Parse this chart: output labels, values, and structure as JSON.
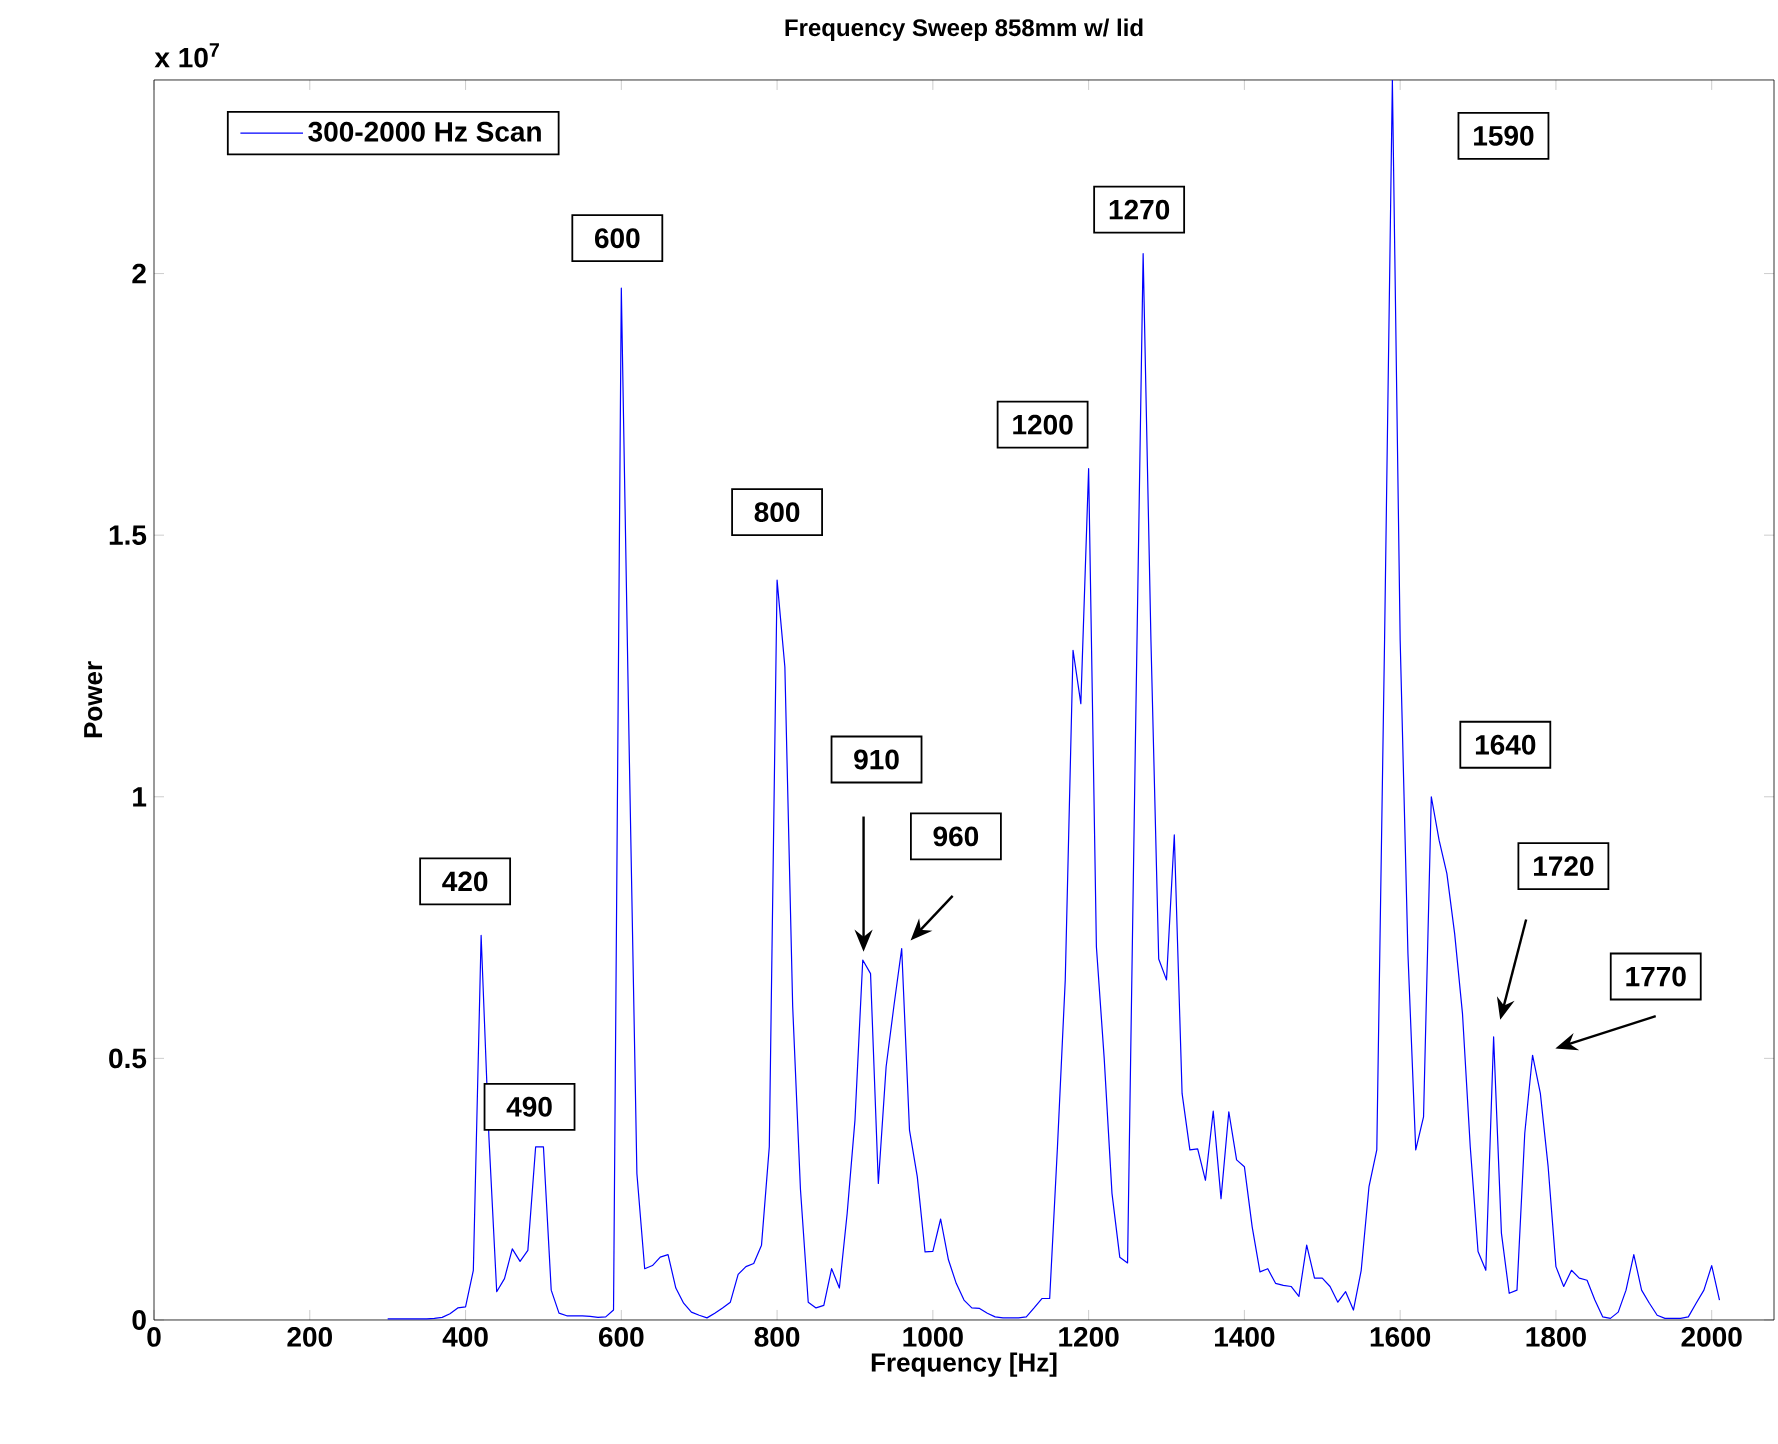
{
  "chart_data": {
    "type": "line",
    "title": "Frequency Sweep 858mm w/ lid",
    "xlabel": "Frequency [Hz]",
    "ylabel": "Power",
    "x": [
      300,
      310,
      320,
      330,
      340,
      350,
      360,
      370,
      380,
      390,
      400,
      410,
      420,
      430,
      440,
      450,
      460,
      470,
      480,
      490,
      500,
      510,
      520,
      530,
      540,
      550,
      560,
      570,
      580,
      590,
      600,
      610,
      620,
      630,
      640,
      650,
      660,
      670,
      680,
      690,
      700,
      710,
      720,
      730,
      740,
      750,
      760,
      770,
      780,
      790,
      800,
      810,
      820,
      830,
      840,
      850,
      860,
      870,
      880,
      890,
      900,
      910,
      920,
      930,
      940,
      950,
      960,
      970,
      980,
      990,
      1000,
      1010,
      1020,
      1030,
      1040,
      1050,
      1060,
      1070,
      1080,
      1090,
      1100,
      1110,
      1120,
      1130,
      1140,
      1150,
      1160,
      1170,
      1180,
      1190,
      1200,
      1210,
      1220,
      1230,
      1240,
      1250,
      1260,
      1270,
      1280,
      1290,
      1300,
      1310,
      1320,
      1330,
      1340,
      1350,
      1360,
      1370,
      1380,
      1390,
      1400,
      1410,
      1420,
      1430,
      1440,
      1450,
      1460,
      1470,
      1480,
      1490,
      1500,
      1510,
      1520,
      1530,
      1540,
      1550,
      1560,
      1570,
      1580,
      1590,
      1600,
      1610,
      1620,
      1630,
      1640,
      1650,
      1660,
      1670,
      1680,
      1690,
      1700,
      1710,
      1720,
      1730,
      1740,
      1750,
      1760,
      1770,
      1780,
      1790,
      1800,
      1810,
      1820,
      1830,
      1840,
      1850,
      1860,
      1870,
      1880,
      1890,
      1900,
      1910,
      1920,
      1930,
      1940,
      1950,
      1960,
      1970,
      1980,
      1990,
      2000,
      2010
    ],
    "series": [
      {
        "name": "300-2000 Hz Scan",
        "color": "#0000ff",
        "values": [
          0.002,
          0.002,
          0.002,
          0.002,
          0.002,
          0.002,
          0.003,
          0.005,
          0.012,
          0.023,
          0.025,
          0.095,
          0.735,
          0.35,
          0.054,
          0.079,
          0.136,
          0.112,
          0.133,
          0.331,
          0.331,
          0.057,
          0.013,
          0.008,
          0.008,
          0.008,
          0.007,
          0.005,
          0.006,
          0.019,
          1.972,
          1.1,
          0.28,
          0.098,
          0.104,
          0.12,
          0.125,
          0.061,
          0.032,
          0.015,
          0.009,
          0.004,
          0.013,
          0.023,
          0.034,
          0.087,
          0.102,
          0.108,
          0.143,
          0.331,
          1.414,
          1.248,
          0.6,
          0.25,
          0.034,
          0.023,
          0.028,
          0.098,
          0.061,
          0.204,
          0.382,
          0.688,
          0.662,
          0.261,
          0.484,
          0.6,
          0.71,
          0.363,
          0.274,
          0.13,
          0.131,
          0.193,
          0.115,
          0.07,
          0.038,
          0.023,
          0.022,
          0.013,
          0.006,
          0.004,
          0.004,
          0.004,
          0.006,
          0.023,
          0.041,
          0.041,
          0.331,
          0.65,
          1.28,
          1.178,
          1.627,
          0.713,
          0.5,
          0.242,
          0.12,
          0.109,
          1.1,
          2.038,
          1.3,
          0.69,
          0.65,
          0.927,
          0.433,
          0.325,
          0.327,
          0.267,
          0.399,
          0.232,
          0.398,
          0.306,
          0.293,
          0.178,
          0.092,
          0.098,
          0.07,
          0.066,
          0.064,
          0.045,
          0.143,
          0.08,
          0.08,
          0.064,
          0.034,
          0.054,
          0.019,
          0.095,
          0.255,
          0.325,
          1.3,
          2.37,
          1.3,
          0.7,
          0.325,
          0.388,
          1.0,
          0.917,
          0.853,
          0.738,
          0.586,
          0.331,
          0.131,
          0.095,
          0.541,
          0.166,
          0.051,
          0.057,
          0.357,
          0.506,
          0.433,
          0.293,
          0.102,
          0.064,
          0.095,
          0.08,
          0.076,
          0.038,
          0.006,
          0.003,
          0.015,
          0.057,
          0.125,
          0.057,
          0.032,
          0.009,
          0.003,
          0.003,
          0.003,
          0.006,
          0.032,
          0.057,
          0.104,
          0.038
        ]
      }
    ],
    "xlim": [
      0,
      2080
    ],
    "ylim": [
      0,
      2.37
    ],
    "xticks": [
      0,
      200,
      400,
      600,
      800,
      1000,
      1200,
      1400,
      1600,
      1800,
      2000
    ],
    "yticks": [
      0,
      0.5,
      1,
      1.5,
      2
    ],
    "grid": false,
    "legend": "top left",
    "annotations": [
      "x 10$^{7}$",
      {
        "text": "420",
        "x": 420,
        "y": 0.735
      },
      {
        "text": "490",
        "x": 495,
        "y": 0.331
      },
      {
        "text": "600",
        "x": 600,
        "y": 1.972
      },
      {
        "text": "800",
        "x": 800,
        "y": 1.414
      },
      "910",
      "960",
      {
        "text": "1200",
        "x": 1200,
        "y": 1.627
      },
      {
        "text": "1270",
        "x": 1270,
        "y": 2.038
      },
      "1590",
      {
        "text": "1640",
        "x": 1640,
        "y": 1.0
      },
      "1720",
      "1770"
    ]
  }
}
